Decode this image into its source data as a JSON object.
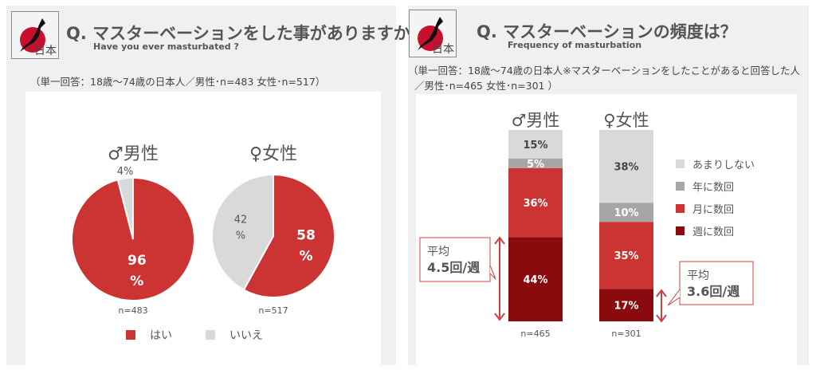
{
  "left": {
    "logo_text": "日本",
    "title": "Q. マスターベーションをした事がありますか？",
    "subtitle": "Have you ever masturbated ?",
    "note": "（単一回答：18歳～74歳の日本人／男性･n=483 女性･n=517）"
  },
  "right": {
    "logo_text": "日本",
    "title": "Q.  マスターベーションの頻度は？",
    "subtitle": "Frequency of masturbation",
    "note1": "（単一回答：18歳～74歳の日本人※マスターベーションをしたことがあると回答した人",
    "note2": "／男性･n=465 女性･n=301 ）"
  },
  "chart_data": [
    {
      "type": "pie",
      "groups": [
        {
          "label": "♂男性",
          "n": "n=483",
          "values": [
            96,
            4
          ],
          "labels": [
            "96\n%",
            "4%"
          ]
        },
        {
          "label": "♀女性",
          "n": "n=517",
          "values": [
            58,
            42
          ],
          "labels": [
            "58\n%",
            "42\n%"
          ]
        }
      ],
      "legend": [
        {
          "name": "はい",
          "color": "#cc3333"
        },
        {
          "name": "いいえ",
          "color": "#d9d9d9"
        }
      ],
      "legend_position": "bottom"
    },
    {
      "type": "stacked-bar",
      "categories": [
        "♂男性",
        "♀女性"
      ],
      "n": [
        "n=465",
        "n=301"
      ],
      "series": [
        {
          "name": "週に数回",
          "color": "#8b0a0e",
          "values": [
            44,
            17
          ]
        },
        {
          "name": "月に数回",
          "color": "#cc3333",
          "values": [
            36,
            35
          ]
        },
        {
          "name": "年に数回",
          "color": "#a6a6a6",
          "values": [
            5,
            10
          ]
        },
        {
          "name": "あまりしない",
          "color": "#d9d9d9",
          "values": [
            15,
            38
          ]
        }
      ],
      "legend_position": "right",
      "callouts": [
        {
          "label": "平均",
          "value": "4.5回/週"
        },
        {
          "label": "平均",
          "value": "3.6回/週"
        }
      ]
    }
  ]
}
